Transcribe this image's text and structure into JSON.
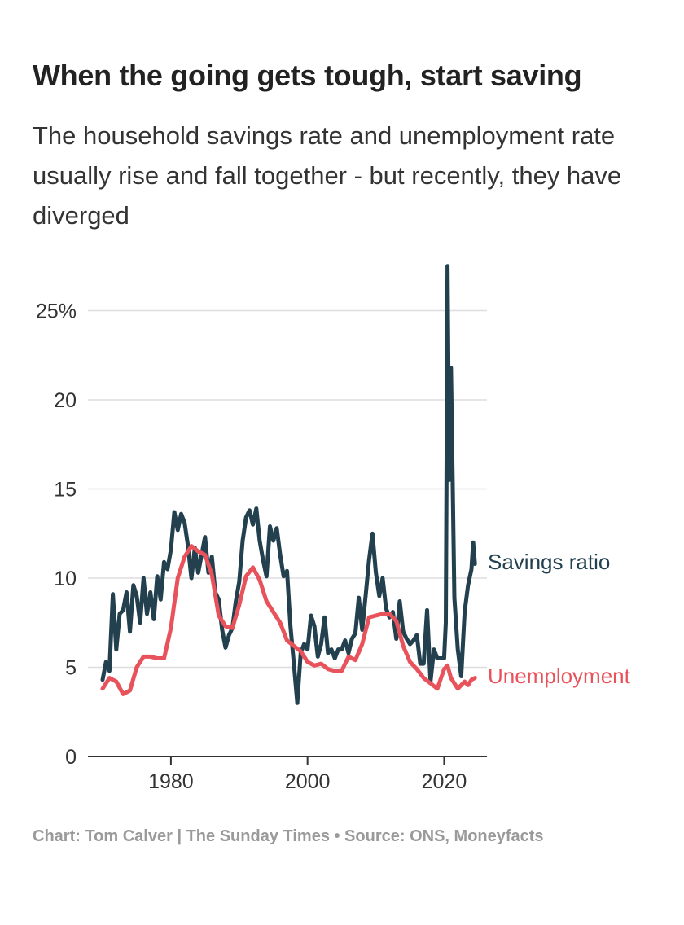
{
  "chart_data": {
    "type": "line",
    "title": "When the going gets tough, start saving",
    "subtitle": "The household savings rate and unemployment rate usually rise and fall together - but recently, they have diverged",
    "xlabel": "",
    "ylabel": "",
    "xlim": [
      1970,
      2024
    ],
    "ylim": [
      0,
      27.5
    ],
    "y_ticks": [
      0,
      5,
      10,
      15,
      20,
      25
    ],
    "y_tick_labels": [
      "0",
      "5",
      "10",
      "15",
      "20",
      "25%"
    ],
    "x_ticks": [
      1980,
      2000,
      2020
    ],
    "x_tick_labels": [
      "1980",
      "2000",
      "2020"
    ],
    "grid": true,
    "legend": "direct labels at line ends (right)",
    "series": [
      {
        "name": "Savings ratio",
        "label": "Savings ratio",
        "color": "#23404f",
        "x": [
          1970,
          1970.5,
          1971,
          1971.5,
          1972,
          1972.5,
          1973,
          1973.5,
          1974,
          1974.5,
          1975,
          1975.5,
          1976,
          1976.5,
          1977,
          1977.5,
          1978,
          1978.5,
          1979,
          1979.5,
          1980,
          1980.5,
          1981,
          1981.5,
          1982,
          1982.5,
          1983,
          1983.5,
          1984,
          1984.5,
          1985,
          1985.5,
          1986,
          1986.5,
          1987,
          1987.5,
          1988,
          1988.5,
          1989,
          1989.5,
          1990,
          1990.5,
          1991,
          1991.5,
          1992,
          1992.5,
          1993,
          1993.5,
          1994,
          1994.5,
          1995,
          1995.5,
          1996,
          1996.5,
          1997,
          1997.5,
          1998,
          1998.5,
          1999,
          1999.5,
          2000,
          2000.5,
          2001,
          2001.5,
          2002,
          2002.5,
          2003,
          2003.5,
          2004,
          2004.5,
          2005,
          2005.5,
          2006,
          2006.5,
          2007,
          2007.5,
          2008,
          2008.5,
          2009,
          2009.5,
          2010,
          2010.5,
          2011,
          2011.5,
          2012,
          2012.5,
          2013,
          2013.5,
          2014,
          2014.5,
          2015,
          2015.5,
          2016,
          2016.5,
          2017,
          2017.5,
          2018,
          2018.5,
          2019,
          2019.5,
          2020,
          2020.25,
          2020.5,
          2020.75,
          2021,
          2021.25,
          2021.5,
          2022,
          2022.5,
          2023,
          2023.5,
          2024,
          2024.25,
          2024.5
        ],
        "values": [
          4.3,
          5.3,
          4.8,
          9.1,
          6.0,
          8.0,
          8.2,
          9.2,
          7.0,
          9.6,
          9.0,
          7.5,
          10.0,
          8.0,
          9.2,
          7.7,
          10.1,
          8.8,
          10.9,
          10.5,
          11.6,
          13.7,
          12.7,
          13.6,
          13.1,
          11.8,
          10.0,
          11.7,
          10.3,
          11.3,
          12.3,
          10.3,
          11.2,
          9.2,
          8.8,
          7.1,
          6.1,
          6.8,
          7.2,
          8.7,
          9.8,
          12.1,
          13.4,
          13.8,
          13.0,
          13.9,
          12.1,
          11.0,
          10.1,
          12.9,
          12.1,
          12.8,
          11.3,
          10.1,
          10.4,
          7.3,
          5.2,
          3.0,
          5.8,
          6.3,
          6.0,
          7.9,
          7.3,
          5.6,
          6.3,
          7.8,
          5.8,
          6.0,
          5.5,
          6.0,
          6.0,
          6.5,
          5.8,
          6.6,
          6.9,
          8.9,
          7.1,
          9.0,
          11.0,
          12.5,
          10.3,
          9.0,
          10.0,
          8.3,
          7.8,
          8.1,
          6.6,
          8.7,
          7.0,
          6.6,
          6.3,
          6.5,
          6.8,
          5.2,
          5.2,
          8.2,
          4.2,
          6.0,
          5.5,
          5.5,
          5.5,
          7.5,
          27.5,
          15.5,
          21.8,
          15.5,
          8.9,
          6.0,
          4.5,
          8.1,
          9.6,
          10.5,
          12.0,
          10.8
        ]
      },
      {
        "name": "Unemployment",
        "label": "Unemployment",
        "color": "#e8535b",
        "x": [
          1970,
          1971,
          1972,
          1973,
          1974,
          1975,
          1976,
          1977,
          1978,
          1979,
          1980,
          1981,
          1982,
          1983,
          1984,
          1985,
          1986,
          1987,
          1988,
          1989,
          1990,
          1991,
          1992,
          1993,
          1994,
          1995,
          1996,
          1997,
          1998,
          1999,
          2000,
          2001,
          2002,
          2003,
          2004,
          2005,
          2006,
          2007,
          2008,
          2009,
          2010,
          2011,
          2012,
          2013,
          2014,
          2015,
          2016,
          2017,
          2018,
          2019,
          2020,
          2020.5,
          2021,
          2022,
          2023,
          2023.5,
          2024,
          2024.5
        ],
        "values": [
          3.8,
          4.4,
          4.2,
          3.5,
          3.7,
          5.0,
          5.6,
          5.6,
          5.5,
          5.5,
          7.2,
          10.0,
          11.2,
          11.8,
          11.5,
          11.3,
          10.2,
          7.9,
          7.3,
          7.2,
          8.5,
          10.1,
          10.6,
          9.9,
          8.7,
          8.1,
          7.5,
          6.5,
          6.2,
          5.9,
          5.3,
          5.1,
          5.2,
          4.9,
          4.8,
          4.8,
          5.6,
          5.4,
          6.3,
          7.8,
          7.9,
          8.0,
          8.0,
          7.6,
          6.2,
          5.3,
          4.9,
          4.4,
          4.1,
          3.8,
          4.9,
          5.1,
          4.4,
          3.8,
          4.2,
          4.0,
          4.3,
          4.4
        ]
      }
    ]
  },
  "footer": "Chart: Tom Calver | The Sunday Times • Source: ONS, Moneyfacts"
}
